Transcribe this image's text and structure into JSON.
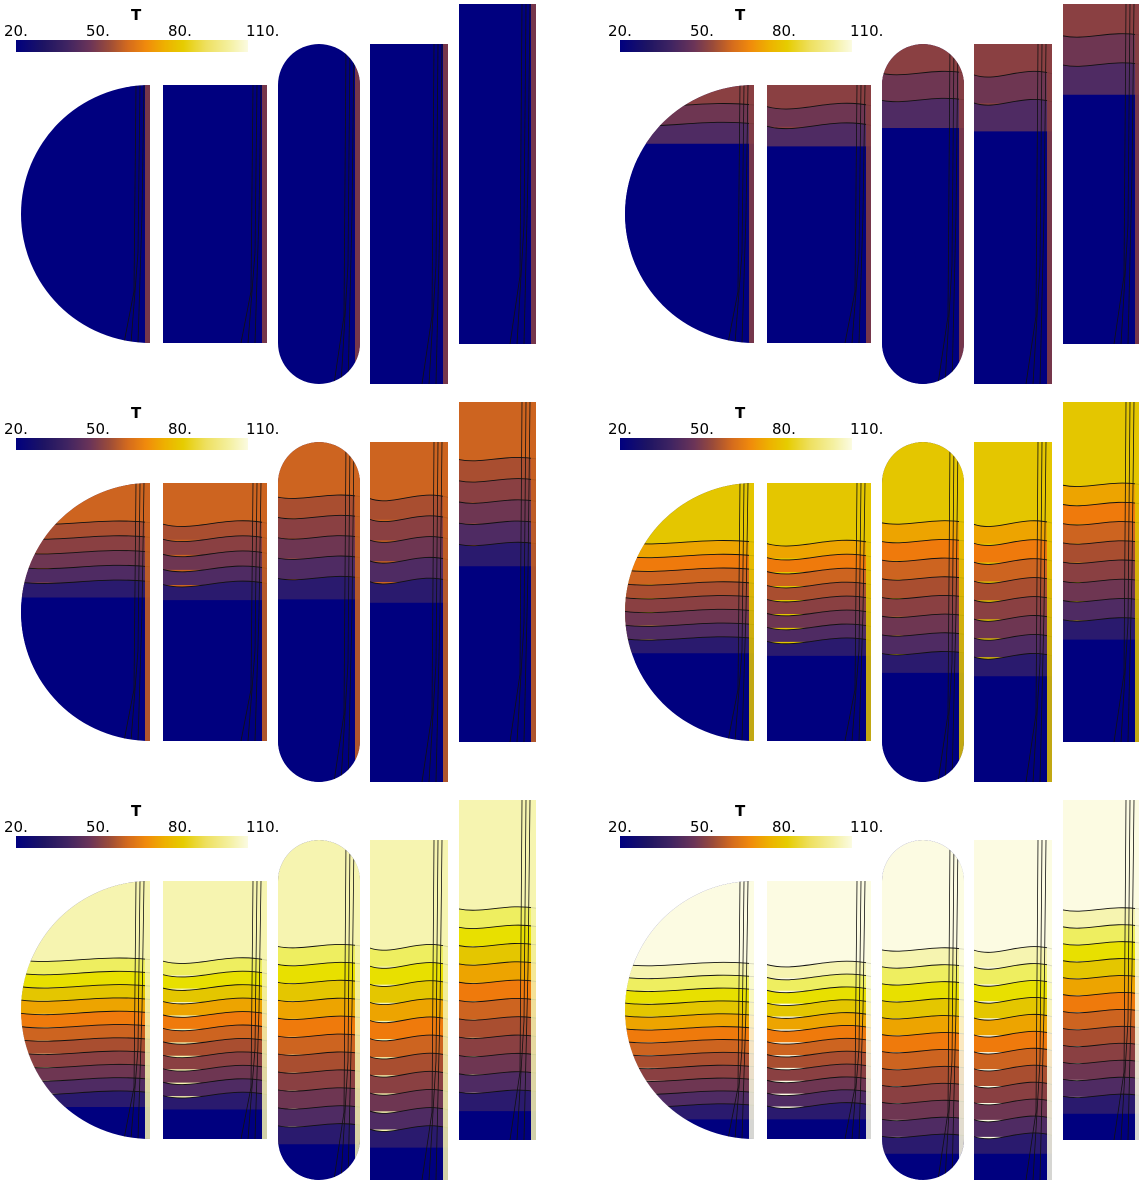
{
  "colorbar": {
    "title": "T",
    "ticks": [
      "20.",
      "50.",
      "80.",
      "110."
    ]
  },
  "palette": {
    "navy": "#00007f",
    "indigo": "#2a1a6e",
    "purple": "#4f2b63",
    "plum": "#6e3652",
    "brown": "#8a4042",
    "rust": "#a94e30",
    "burnt": "#cd6420",
    "orange": "#ef7a0c",
    "amber": "#eda400",
    "gold": "#e4c600",
    "yellow": "#e8e000",
    "lemon": "#eeee60",
    "pale": "#f6f4b0",
    "cream": "#fcfbe2"
  },
  "panels": [
    {
      "stage": 1,
      "top": "navy",
      "bands": []
    },
    {
      "stage": 2,
      "top": "brown",
      "bands": [
        "plum",
        "purple"
      ]
    },
    {
      "stage": 3,
      "top": "burnt",
      "bands": [
        "rust",
        "brown",
        "plum",
        "purple",
        "indigo"
      ]
    },
    {
      "stage": 4,
      "top": "gold",
      "bands": [
        "amber",
        "orange",
        "burnt",
        "rust",
        "brown",
        "plum",
        "purple",
        "indigo"
      ]
    },
    {
      "stage": 5,
      "top": "pale",
      "bands": [
        "lemon",
        "yellow",
        "gold",
        "amber",
        "orange",
        "burnt",
        "rust",
        "brown",
        "plum",
        "purple",
        "indigo"
      ]
    },
    {
      "stage": 6,
      "top": "cream",
      "bands": [
        "pale",
        "lemon",
        "yellow",
        "gold",
        "amber",
        "orange",
        "burnt",
        "rust",
        "brown",
        "plum",
        "purple",
        "indigo"
      ]
    }
  ]
}
